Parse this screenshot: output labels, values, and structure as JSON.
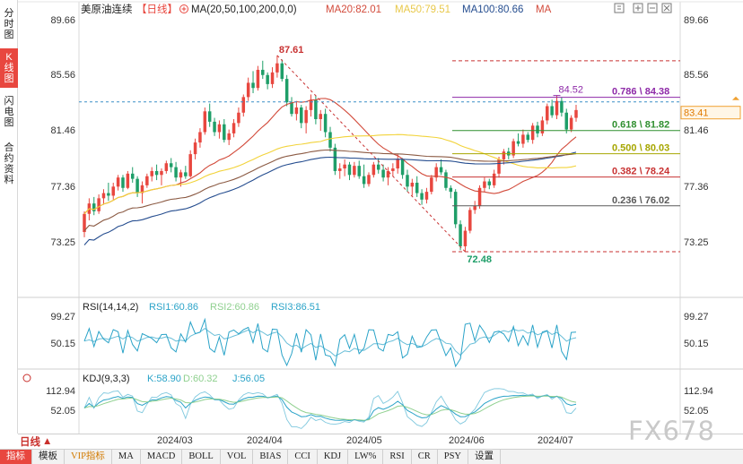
{
  "sidebar": {
    "tabs": [
      {
        "label": "分时图",
        "active": false
      },
      {
        "label": "K线图",
        "active": true
      },
      {
        "label": "闪电图",
        "active": false
      },
      {
        "label": "合约资料",
        "active": false
      }
    ]
  },
  "header": {
    "symbol": "美原油连续",
    "period_badge": "【日线】",
    "ma_label": "MA(20,50,100,200,0,0)",
    "ma20_label": "MA20:82.01",
    "ma50_label": "MA50:79.51",
    "ma100_label": "MA100:80.66",
    "ma_suffix": "MA"
  },
  "colors": {
    "up": "#e8473f",
    "down": "#1e9e68",
    "ma20": "#d24a3a",
    "ma50": "#f2d33a",
    "ma100": "#254d8f",
    "ma200": "#8b5a43",
    "fib_red": "#c83232",
    "rsi1": "#2aa3c8",
    "rsi2": "#8fd08f",
    "kdj_k": "#2aa3c8",
    "kdj_d": "#8fd08f"
  },
  "price_axis": {
    "ticks": [
      "89.66",
      "85.56",
      "81.46",
      "77.36",
      "73.25"
    ],
    "current_price": "83.41"
  },
  "chart_data": {
    "type": "candlestick",
    "ylim": [
      72.0,
      90.5
    ],
    "x_labels": [
      "2024/03",
      "2024/04",
      "2024/05",
      "2024/06",
      "2024/07"
    ],
    "candles": [
      [
        74.0,
        75.6,
        73.6,
        75.4
      ],
      [
        75.4,
        76.6,
        74.9,
        76.2
      ],
      [
        76.2,
        76.7,
        75.3,
        75.6
      ],
      [
        75.6,
        76.9,
        75.4,
        76.6
      ],
      [
        76.6,
        77.3,
        76.1,
        77.0
      ],
      [
        77.0,
        77.8,
        76.4,
        76.8
      ],
      [
        76.8,
        77.8,
        76.5,
        77.5
      ],
      [
        77.5,
        78.4,
        77.2,
        78.2
      ],
      [
        78.2,
        78.4,
        77.1,
        77.4
      ],
      [
        77.4,
        78.7,
        77.3,
        78.5
      ],
      [
        78.5,
        79.0,
        77.8,
        78.1
      ],
      [
        78.1,
        78.3,
        76.7,
        77.0
      ],
      [
        77.0,
        77.9,
        76.2,
        77.6
      ],
      [
        77.6,
        78.5,
        77.4,
        78.3
      ],
      [
        78.3,
        79.0,
        77.9,
        78.7
      ],
      [
        78.7,
        79.2,
        78.0,
        78.4
      ],
      [
        78.4,
        78.9,
        77.6,
        78.7
      ],
      [
        78.7,
        79.5,
        78.5,
        79.3
      ],
      [
        79.3,
        79.7,
        78.6,
        79.0
      ],
      [
        79.0,
        79.4,
        77.9,
        78.2
      ],
      [
        78.2,
        78.8,
        77.5,
        78.6
      ],
      [
        78.6,
        79.1,
        78.1,
        78.3
      ],
      [
        78.3,
        80.3,
        78.2,
        80.0
      ],
      [
        80.0,
        81.2,
        79.6,
        80.9
      ],
      [
        80.9,
        82.0,
        80.5,
        81.7
      ],
      [
        81.7,
        83.6,
        81.5,
        83.3
      ],
      [
        83.3,
        83.9,
        82.1,
        82.5
      ],
      [
        82.5,
        82.8,
        81.4,
        81.7
      ],
      [
        81.7,
        82.6,
        81.2,
        82.3
      ],
      [
        82.3,
        82.7,
        80.9,
        81.1
      ],
      [
        81.1,
        81.9,
        80.7,
        81.6
      ],
      [
        81.6,
        82.7,
        81.3,
        82.4
      ],
      [
        82.4,
        83.6,
        82.1,
        83.2
      ],
      [
        83.2,
        84.6,
        82.9,
        84.4
      ],
      [
        84.4,
        85.9,
        84.1,
        85.5
      ],
      [
        85.5,
        86.4,
        84.7,
        85.1
      ],
      [
        85.1,
        86.8,
        84.9,
        86.5
      ],
      [
        86.5,
        87.2,
        85.8,
        86.1
      ],
      [
        86.1,
        86.3,
        85.0,
        85.4
      ],
      [
        85.4,
        86.7,
        85.1,
        86.3
      ],
      [
        86.3,
        87.61,
        85.9,
        87.0
      ],
      [
        87.0,
        87.3,
        85.6,
        85.8
      ],
      [
        85.8,
        86.1,
        83.7,
        84.0
      ],
      [
        84.0,
        84.4,
        82.9,
        83.1
      ],
      [
        83.1,
        84.1,
        82.6,
        83.6
      ],
      [
        83.6,
        83.8,
        82.0,
        82.4
      ],
      [
        82.4,
        83.7,
        81.6,
        83.4
      ],
      [
        83.4,
        84.6,
        82.9,
        84.2
      ],
      [
        84.2,
        84.5,
        82.3,
        82.7
      ],
      [
        82.7,
        83.4,
        81.8,
        83.1
      ],
      [
        83.1,
        83.5,
        81.3,
        81.7
      ],
      [
        81.7,
        82.1,
        80.2,
        80.5
      ],
      [
        80.5,
        80.8,
        78.4,
        78.7
      ],
      [
        78.7,
        79.3,
        78.1,
        78.9
      ],
      [
        78.9,
        79.6,
        78.3,
        79.2
      ],
      [
        79.2,
        79.4,
        78.0,
        78.4
      ],
      [
        78.4,
        79.4,
        78.2,
        79.1
      ],
      [
        79.1,
        79.5,
        78.1,
        78.3
      ],
      [
        78.3,
        79.2,
        77.4,
        77.7
      ],
      [
        77.7,
        78.6,
        77.5,
        78.4
      ],
      [
        78.4,
        79.4,
        78.2,
        79.2
      ],
      [
        79.2,
        79.7,
        78.5,
        78.8
      ],
      [
        78.8,
        79.2,
        77.9,
        78.2
      ],
      [
        78.2,
        79.0,
        77.6,
        78.7
      ],
      [
        78.7,
        79.3,
        78.3,
        78.9
      ],
      [
        78.9,
        80.0,
        78.5,
        79.6
      ],
      [
        79.6,
        79.7,
        78.1,
        78.4
      ],
      [
        78.4,
        78.8,
        77.1,
        77.5
      ],
      [
        77.5,
        78.1,
        76.8,
        77.8
      ],
      [
        77.8,
        78.3,
        76.7,
        77.0
      ],
      [
        77.0,
        77.3,
        76.1,
        76.5
      ],
      [
        76.5,
        77.4,
        76.2,
        77.1
      ],
      [
        77.1,
        78.4,
        76.9,
        78.2
      ],
      [
        78.2,
        79.3,
        77.9,
        79.0
      ],
      [
        79.0,
        79.6,
        78.4,
        78.6
      ],
      [
        78.6,
        78.8,
        77.2,
        77.4
      ],
      [
        77.4,
        77.6,
        76.6,
        77.1
      ],
      [
        77.1,
        77.3,
        74.3,
        74.6
      ],
      [
        74.6,
        74.9,
        72.6,
        72.9
      ],
      [
        72.9,
        74.4,
        72.48,
        74.1
      ],
      [
        74.1,
        75.9,
        73.9,
        75.7
      ],
      [
        75.7,
        76.4,
        75.4,
        76.0
      ],
      [
        76.0,
        77.6,
        75.8,
        77.4
      ],
      [
        77.4,
        78.2,
        77.1,
        77.9
      ],
      [
        77.9,
        78.1,
        77.3,
        77.6
      ],
      [
        77.6,
        78.8,
        77.4,
        78.5
      ],
      [
        78.5,
        79.8,
        78.2,
        79.6
      ],
      [
        79.6,
        80.4,
        79.2,
        80.2
      ],
      [
        80.2,
        80.5,
        79.6,
        79.9
      ],
      [
        79.9,
        81.2,
        79.7,
        81.0
      ],
      [
        81.0,
        81.6,
        80.6,
        80.8
      ],
      [
        80.8,
        81.9,
        80.5,
        81.5
      ],
      [
        81.5,
        81.7,
        80.9,
        81.1
      ],
      [
        81.1,
        82.4,
        80.8,
        82.2
      ],
      [
        82.2,
        82.5,
        81.3,
        81.6
      ],
      [
        81.6,
        82.9,
        81.4,
        82.6
      ],
      [
        82.6,
        83.9,
        82.3,
        83.7
      ],
      [
        83.7,
        84.2,
        82.8,
        83.0
      ],
      [
        83.0,
        84.52,
        82.7,
        84.1
      ],
      [
        84.1,
        84.4,
        82.9,
        83.2
      ],
      [
        83.2,
        83.5,
        81.6,
        81.9
      ],
      [
        81.9,
        83.0,
        81.7,
        82.8
      ],
      [
        82.8,
        83.8,
        82.5,
        83.4
      ]
    ],
    "fibonacci": {
      "high_label": "87.61",
      "low_label": "72.48",
      "swing_high_label": "84.52",
      "levels": [
        {
          "label": "0.786 \\ 84.38",
          "value": 84.38,
          "color": "#8e2aa8"
        },
        {
          "label": "0.618 \\ 81.82",
          "value": 81.82,
          "color": "#2f8f2f"
        },
        {
          "label": "0.500 \\ 80.03",
          "value": 80.03,
          "color": "#a6a600"
        },
        {
          "label": "0.382 \\ 78.24",
          "value": 78.24,
          "color": "#c83232"
        },
        {
          "label": "0.236 \\ 76.02",
          "value": 76.02,
          "color": "#5a5a5a"
        }
      ]
    },
    "rsi": {
      "label": "RSI(14,14,2)",
      "rsi1": "RSI1:60.86",
      "rsi2": "RSI2:60.86",
      "rsi3": "RSI3:86.51",
      "ticks": [
        "99.27",
        "50.15"
      ]
    },
    "kdj": {
      "label": "KDJ(9,3,3)",
      "k": "K:58.90",
      "d": "D:60.32",
      "j": "J:56.05",
      "ticks": [
        "112.94",
        "52.05"
      ]
    }
  },
  "bottom_bar": {
    "period_label": "日线",
    "tabs": [
      "指标",
      "模板",
      "VIP指标",
      "MA",
      "MACD",
      "BOLL",
      "VOL",
      "BIAS",
      "CCI",
      "KDJ",
      "LW%",
      "RSI",
      "CR",
      "PSY",
      "设置"
    ]
  },
  "watermark": "FX678"
}
